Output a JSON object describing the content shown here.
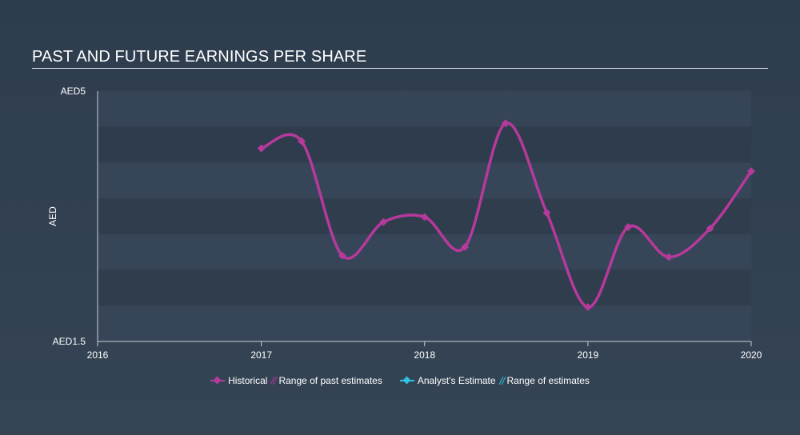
{
  "title": "PAST AND FUTURE EARNINGS PER SHARE",
  "colors": {
    "historical": "#b6399c",
    "analyst": "#2ec1e0",
    "band_dark": "#2f3c4c",
    "band_light": "#38475a"
  },
  "legend": {
    "historical": "Historical",
    "range_past": "Range of past estimates",
    "analyst": "Analyst's Estimate",
    "range_future": "Range of estimates"
  },
  "chart_data": {
    "type": "line",
    "title": "PAST AND FUTURE EARNINGS PER SHARE",
    "ylabel": "AED",
    "xlabel": "",
    "ylim": [
      1.5,
      5
    ],
    "xlim": [
      "2016-01-01",
      "2020-01-01"
    ],
    "y_tick_labels": [
      {
        "value": 5,
        "label": "AED5"
      },
      {
        "value": 1.5,
        "label": "AED1.5"
      }
    ],
    "x_tick_labels": [
      {
        "value": "2016-01-01",
        "label": "2016"
      },
      {
        "value": "2017-01-01",
        "label": "2017"
      },
      {
        "value": "2018-01-01",
        "label": "2018"
      },
      {
        "value": "2019-01-01",
        "label": "2019"
      },
      {
        "value": "2020-01-01",
        "label": "2020"
      }
    ],
    "series": [
      {
        "name": "Historical",
        "points": [
          {
            "x": "2017-01-01",
            "y": 4.2
          },
          {
            "x": "2017-04-01",
            "y": 4.3
          },
          {
            "x": "2017-07-01",
            "y": 2.7
          },
          {
            "x": "2017-10-01",
            "y": 3.17
          },
          {
            "x": "2018-01-01",
            "y": 3.24
          },
          {
            "x": "2018-04-01",
            "y": 2.82
          },
          {
            "x": "2018-07-01",
            "y": 4.55
          },
          {
            "x": "2018-10-01",
            "y": 3.3
          },
          {
            "x": "2019-01-01",
            "y": 1.98
          },
          {
            "x": "2019-04-01",
            "y": 3.1
          },
          {
            "x": "2019-07-01",
            "y": 2.68
          },
          {
            "x": "2019-10-01",
            "y": 3.08
          },
          {
            "x": "2020-01-01",
            "y": 3.88
          }
        ]
      }
    ],
    "grid": "alternating-bands",
    "legend_position": "bottom-center"
  }
}
